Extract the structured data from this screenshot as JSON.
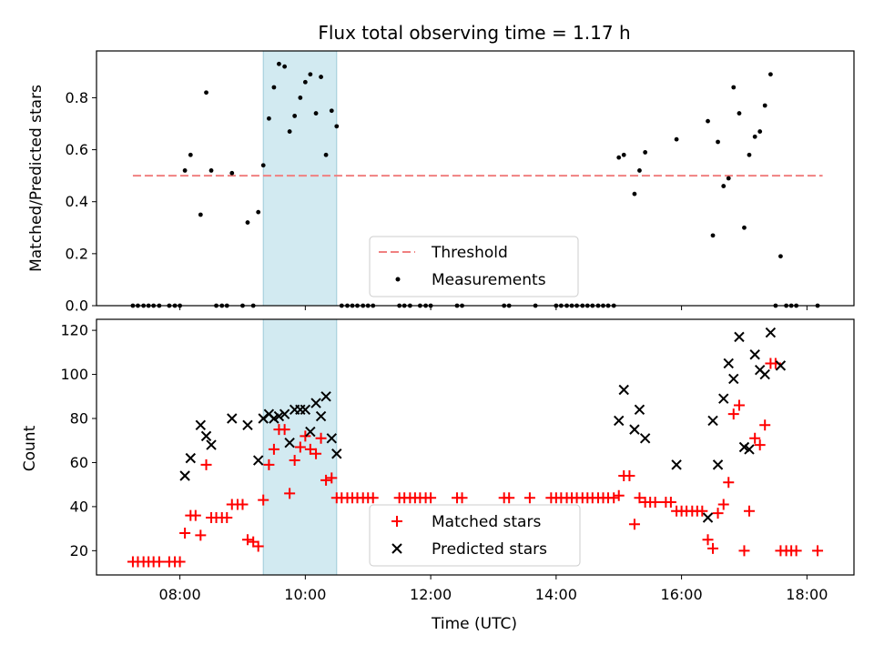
{
  "chart_data": [
    {
      "type": "scatter",
      "title": "Flux total observing time = 1.17 h",
      "xlabel": "",
      "ylabel": "Matched/Predicted stars",
      "xlim": [
        6.67,
        18.75
      ],
      "ylim": [
        0,
        0.98
      ],
      "yticks": [
        0.0,
        0.2,
        0.4,
        0.6,
        0.8
      ],
      "ytick_labels": [
        "0.0",
        "0.2",
        "0.4",
        "0.6",
        "0.8"
      ],
      "xticks": [
        8,
        10,
        12,
        14,
        16,
        18
      ],
      "shaded_interval": [
        9.33,
        10.5
      ],
      "threshold": {
        "label": "Threshold",
        "value": 0.5,
        "x_range": [
          7.25,
          18.25
        ],
        "color": "#f08080"
      },
      "legend_position": "lower center",
      "series": [
        {
          "name": "Measurements",
          "color": "#000000",
          "marker": "dot",
          "points": [
            [
              7.25,
              0
            ],
            [
              7.33,
              0
            ],
            [
              7.42,
              0
            ],
            [
              7.5,
              0
            ],
            [
              7.58,
              0
            ],
            [
              7.67,
              0
            ],
            [
              7.83,
              0
            ],
            [
              7.92,
              0
            ],
            [
              8.0,
              0
            ],
            [
              8.08,
              0.52
            ],
            [
              8.17,
              0.58
            ],
            [
              8.33,
              0.35
            ],
            [
              8.42,
              0.82
            ],
            [
              8.5,
              0.52
            ],
            [
              8.58,
              0
            ],
            [
              8.67,
              0
            ],
            [
              8.75,
              0
            ],
            [
              8.83,
              0.51
            ],
            [
              9.0,
              0
            ],
            [
              9.08,
              0.32
            ],
            [
              9.17,
              0
            ],
            [
              9.25,
              0.36
            ],
            [
              9.33,
              0.54
            ],
            [
              9.42,
              0.72
            ],
            [
              9.5,
              0.84
            ],
            [
              9.58,
              0.93
            ],
            [
              9.67,
              0.92
            ],
            [
              9.75,
              0.67
            ],
            [
              9.83,
              0.73
            ],
            [
              9.92,
              0.8
            ],
            [
              10.0,
              0.86
            ],
            [
              10.08,
              0.89
            ],
            [
              10.17,
              0.74
            ],
            [
              10.25,
              0.88
            ],
            [
              10.33,
              0.58
            ],
            [
              10.42,
              0.75
            ],
            [
              10.5,
              0.69
            ],
            [
              10.58,
              0
            ],
            [
              10.67,
              0
            ],
            [
              10.75,
              0
            ],
            [
              10.83,
              0
            ],
            [
              10.92,
              0
            ],
            [
              11.0,
              0
            ],
            [
              11.08,
              0
            ],
            [
              11.5,
              0
            ],
            [
              11.58,
              0
            ],
            [
              11.67,
              0
            ],
            [
              11.83,
              0
            ],
            [
              11.92,
              0
            ],
            [
              12.0,
              0
            ],
            [
              12.42,
              0
            ],
            [
              12.5,
              0
            ],
            [
              13.17,
              0
            ],
            [
              13.25,
              0
            ],
            [
              13.67,
              0
            ],
            [
              14.0,
              0
            ],
            [
              14.08,
              0
            ],
            [
              14.17,
              0
            ],
            [
              14.25,
              0
            ],
            [
              14.33,
              0
            ],
            [
              14.42,
              0
            ],
            [
              14.5,
              0
            ],
            [
              14.58,
              0
            ],
            [
              14.67,
              0
            ],
            [
              14.75,
              0
            ],
            [
              14.83,
              0
            ],
            [
              14.92,
              0
            ],
            [
              15.0,
              0.57
            ],
            [
              15.08,
              0.58
            ],
            [
              15.25,
              0.43
            ],
            [
              15.33,
              0.52
            ],
            [
              15.42,
              0.59
            ],
            [
              15.92,
              0.64
            ],
            [
              16.42,
              0.71
            ],
            [
              16.5,
              0.27
            ],
            [
              16.58,
              0.63
            ],
            [
              16.67,
              0.46
            ],
            [
              16.75,
              0.49
            ],
            [
              16.83,
              0.84
            ],
            [
              16.92,
              0.74
            ],
            [
              17.0,
              0.3
            ],
            [
              17.08,
              0.58
            ],
            [
              17.17,
              0.65
            ],
            [
              17.25,
              0.67
            ],
            [
              17.33,
              0.77
            ],
            [
              17.42,
              0.89
            ],
            [
              17.58,
              0.19
            ],
            [
              17.5,
              0
            ],
            [
              17.67,
              0
            ],
            [
              17.75,
              0
            ],
            [
              17.83,
              0
            ],
            [
              18.17,
              0
            ]
          ]
        }
      ]
    },
    {
      "type": "scatter",
      "title": "",
      "xlabel": "Time (UTC)",
      "ylabel": "Count",
      "xlim": [
        6.67,
        18.75
      ],
      "ylim": [
        9,
        125
      ],
      "yticks": [
        20,
        40,
        60,
        80,
        100,
        120
      ],
      "xticks": [
        8,
        10,
        12,
        14,
        16,
        18
      ],
      "xtick_labels": [
        "08:00",
        "10:00",
        "12:00",
        "14:00",
        "16:00",
        "18:00"
      ],
      "shaded_interval": [
        9.33,
        10.5
      ],
      "legend_position": "lower center",
      "series": [
        {
          "name": "Matched stars",
          "color": "#ff0000",
          "marker": "plus",
          "points": [
            [
              7.25,
              15
            ],
            [
              7.33,
              15
            ],
            [
              7.42,
              15
            ],
            [
              7.5,
              15
            ],
            [
              7.58,
              15
            ],
            [
              7.67,
              15
            ],
            [
              7.83,
              15
            ],
            [
              7.92,
              15
            ],
            [
              8.0,
              15
            ],
            [
              8.08,
              28
            ],
            [
              8.17,
              36
            ],
            [
              8.25,
              36
            ],
            [
              8.33,
              27
            ],
            [
              8.42,
              59
            ],
            [
              8.5,
              35
            ],
            [
              8.58,
              35
            ],
            [
              8.67,
              35
            ],
            [
              8.75,
              35
            ],
            [
              8.83,
              41
            ],
            [
              8.92,
              41
            ],
            [
              9.0,
              41
            ],
            [
              9.08,
              25
            ],
            [
              9.17,
              24
            ],
            [
              9.25,
              22
            ],
            [
              9.33,
              43
            ],
            [
              9.42,
              59
            ],
            [
              9.5,
              66
            ],
            [
              9.58,
              75
            ],
            [
              9.67,
              75
            ],
            [
              9.75,
              46
            ],
            [
              9.83,
              61
            ],
            [
              9.92,
              67
            ],
            [
              10.0,
              72
            ],
            [
              10.08,
              66
            ],
            [
              10.17,
              64
            ],
            [
              10.25,
              71
            ],
            [
              10.33,
              52
            ],
            [
              10.42,
              53
            ],
            [
              10.5,
              44
            ],
            [
              10.58,
              44
            ],
            [
              10.67,
              44
            ],
            [
              10.75,
              44
            ],
            [
              10.83,
              44
            ],
            [
              10.92,
              44
            ],
            [
              11.0,
              44
            ],
            [
              11.08,
              44
            ],
            [
              11.5,
              44
            ],
            [
              11.58,
              44
            ],
            [
              11.67,
              44
            ],
            [
              11.75,
              44
            ],
            [
              11.83,
              44
            ],
            [
              11.92,
              44
            ],
            [
              12.0,
              44
            ],
            [
              12.42,
              44
            ],
            [
              12.5,
              44
            ],
            [
              13.17,
              44
            ],
            [
              13.25,
              44
            ],
            [
              13.58,
              44
            ],
            [
              13.92,
              44
            ],
            [
              14.0,
              44
            ],
            [
              14.08,
              44
            ],
            [
              14.17,
              44
            ],
            [
              14.25,
              44
            ],
            [
              14.33,
              44
            ],
            [
              14.42,
              44
            ],
            [
              14.5,
              44
            ],
            [
              14.58,
              44
            ],
            [
              14.67,
              44
            ],
            [
              14.75,
              44
            ],
            [
              14.83,
              44
            ],
            [
              14.92,
              44
            ],
            [
              15.0,
              45
            ],
            [
              15.08,
              54
            ],
            [
              15.17,
              54
            ],
            [
              15.25,
              32
            ],
            [
              15.33,
              44
            ],
            [
              15.42,
              42
            ],
            [
              15.5,
              42
            ],
            [
              15.58,
              42
            ],
            [
              15.75,
              42
            ],
            [
              15.83,
              42
            ],
            [
              15.92,
              38
            ],
            [
              16.0,
              38
            ],
            [
              16.08,
              38
            ],
            [
              16.17,
              38
            ],
            [
              16.25,
              38
            ],
            [
              16.33,
              38
            ],
            [
              16.42,
              25
            ],
            [
              16.5,
              21
            ],
            [
              16.58,
              37
            ],
            [
              16.67,
              41
            ],
            [
              16.75,
              51
            ],
            [
              16.83,
              82
            ],
            [
              16.92,
              86
            ],
            [
              17.0,
              20
            ],
            [
              17.08,
              38
            ],
            [
              17.17,
              71
            ],
            [
              17.25,
              68
            ],
            [
              17.33,
              77
            ],
            [
              17.42,
              105
            ],
            [
              17.5,
              105
            ],
            [
              17.58,
              20
            ],
            [
              17.67,
              20
            ],
            [
              17.75,
              20
            ],
            [
              17.83,
              20
            ],
            [
              18.17,
              20
            ]
          ]
        },
        {
          "name": "Predicted stars",
          "color": "#000000",
          "marker": "x",
          "points": [
            [
              8.08,
              54
            ],
            [
              8.17,
              62
            ],
            [
              8.33,
              77
            ],
            [
              8.42,
              72
            ],
            [
              8.5,
              68
            ],
            [
              8.83,
              80
            ],
            [
              9.08,
              77
            ],
            [
              9.25,
              61
            ],
            [
              9.33,
              80
            ],
            [
              9.42,
              82
            ],
            [
              9.5,
              80
            ],
            [
              9.58,
              81
            ],
            [
              9.67,
              82
            ],
            [
              9.75,
              69
            ],
            [
              9.83,
              84
            ],
            [
              9.92,
              84
            ],
            [
              10.0,
              84
            ],
            [
              10.08,
              74
            ],
            [
              10.17,
              87
            ],
            [
              10.25,
              81
            ],
            [
              10.33,
              90
            ],
            [
              10.42,
              71
            ],
            [
              10.5,
              64
            ],
            [
              15.0,
              79
            ],
            [
              15.08,
              93
            ],
            [
              15.25,
              75
            ],
            [
              15.33,
              84
            ],
            [
              15.42,
              71
            ],
            [
              15.92,
              59
            ],
            [
              16.42,
              35
            ],
            [
              16.5,
              79
            ],
            [
              16.58,
              59
            ],
            [
              16.67,
              89
            ],
            [
              16.75,
              105
            ],
            [
              16.83,
              98
            ],
            [
              16.92,
              117
            ],
            [
              17.0,
              67
            ],
            [
              17.08,
              66
            ],
            [
              17.17,
              109
            ],
            [
              17.25,
              102
            ],
            [
              17.33,
              100
            ],
            [
              17.42,
              119
            ],
            [
              17.58,
              104
            ]
          ]
        }
      ]
    }
  ]
}
